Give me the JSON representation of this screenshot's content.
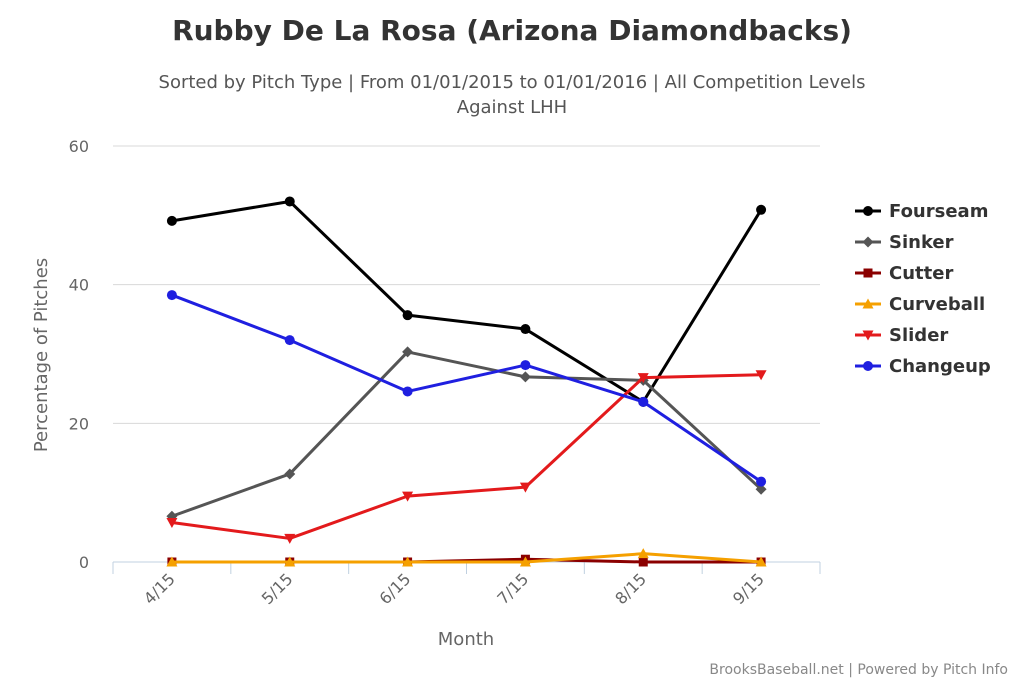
{
  "chart_data": {
    "type": "line",
    "title": "Rubby De La Rosa (Arizona Diamondbacks)",
    "subtitle_line1": "Sorted by Pitch Type | From 01/01/2015 to 01/01/2016 | All Competition Levels",
    "subtitle_line2": "Against LHH",
    "xlabel": "Month",
    "ylabel": "Percentage of Pitches",
    "categories": [
      "4/15",
      "5/15",
      "6/15",
      "7/15",
      "8/15",
      "9/15"
    ],
    "ylim": [
      0,
      60
    ],
    "yticks": [
      0,
      20,
      40,
      60
    ],
    "grid": true,
    "legend_position": "right",
    "credits": "BrooksBaseball.net | Powered by Pitch Info",
    "series": [
      {
        "name": "Fourseam",
        "color": "#000000",
        "marker": "circle",
        "values": [
          49.2,
          52.0,
          35.6,
          33.6,
          23.1,
          50.8
        ]
      },
      {
        "name": "Sinker",
        "color": "#555555",
        "marker": "diamond",
        "values": [
          6.6,
          12.7,
          30.3,
          26.7,
          26.2,
          10.5
        ]
      },
      {
        "name": "Cutter",
        "color": "#8b0000",
        "marker": "square",
        "values": [
          0,
          0,
          0,
          0.4,
          0,
          0
        ]
      },
      {
        "name": "Curveball",
        "color": "#f5a000",
        "marker": "triangle",
        "values": [
          0,
          0,
          0,
          0,
          1.2,
          0
        ]
      },
      {
        "name": "Slider",
        "color": "#e31a1c",
        "marker": "triangle-down",
        "values": [
          5.7,
          3.4,
          9.5,
          10.8,
          26.6,
          27.0
        ]
      },
      {
        "name": "Changeup",
        "color": "#1f1fe0",
        "marker": "circle",
        "values": [
          38.5,
          32.0,
          24.6,
          28.4,
          23.1,
          11.6
        ]
      }
    ]
  }
}
